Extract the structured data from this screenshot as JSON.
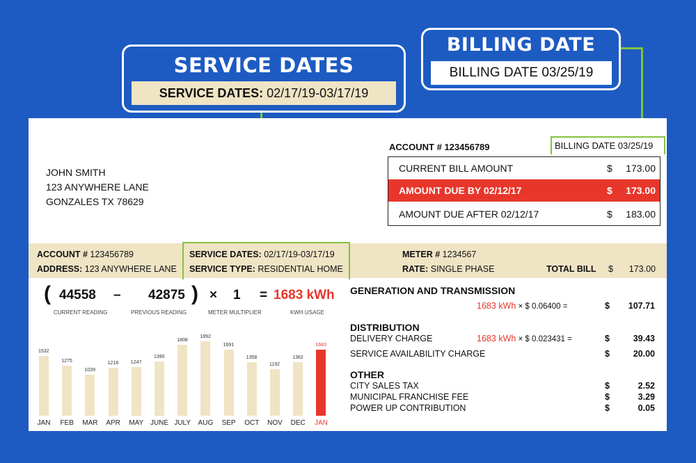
{
  "callouts": {
    "service": {
      "title": "SERVICE DATES",
      "label": "SERVICE DATES:",
      "value": "02/17/19-03/17/19"
    },
    "billing": {
      "title": "BILLING DATE",
      "text": "BILLING DATE 03/25/19"
    }
  },
  "customer": {
    "name": "JOHN SMITH",
    "street": "123 ANYWHERE LANE",
    "city": "GONZALES TX 78629"
  },
  "account_header": "ACCOUNT # 123456789",
  "billing_date_small": "BILLING DATE 03/25/19",
  "amounts": [
    {
      "label": "CURRENT BILL AMOUNT",
      "currency": "$",
      "value": "173.00"
    },
    {
      "label": "AMOUNT DUE BY 02/12/17",
      "currency": "$",
      "value": "173.00"
    },
    {
      "label": "AMOUNT DUE AFTER 02/12/17",
      "currency": "$",
      "value": "183.00"
    }
  ],
  "info": {
    "account_label": "ACCOUNT #",
    "account_value": "123456789",
    "address_label": "ADDRESS:",
    "address_value": "123 ANYWHERE LANE",
    "service_dates_label": "SERVICE DATES:",
    "service_dates_value": "02/17/19-03/17/19",
    "service_type_label": "SERVICE TYPE:",
    "service_type_value": "RESIDENTIAL HOME",
    "meter_label": "METER #",
    "meter_value": "1234567",
    "rate_label": "RATE:",
    "rate_value": "SINGLE PHASE",
    "total_label": "TOTAL BILL",
    "total_currency": "$",
    "total_value": "173.00"
  },
  "formula": {
    "open": "(",
    "current": "44558",
    "minus": "–",
    "previous": "42875",
    "close": ")",
    "times": "×",
    "multiplier": "1",
    "equals": "=",
    "usage": "1683 kWh",
    "current_label": "CURRENT READING",
    "previous_label": "PREVIOUS READING",
    "multiplier_label": "METER MULTIPLIER",
    "usage_label": "KWH USAGE"
  },
  "chart_data": {
    "type": "bar",
    "categories": [
      "JAN",
      "FEB",
      "MAR",
      "APR",
      "MAY",
      "JUNE",
      "JULY",
      "AUG",
      "SEP",
      "OCT",
      "NOV",
      "DEC",
      "JAN"
    ],
    "values": [
      1532,
      1275,
      1039,
      1218,
      1247,
      1390,
      1808,
      1892,
      1691,
      1358,
      1192,
      1362,
      1683
    ],
    "highlight_index": 12,
    "highlight_color": "#e8362b",
    "bar_color": "#efe4c4"
  },
  "charges": {
    "generation": {
      "title": "GENERATION AND TRANSMISSION",
      "kwh": "1683 kWh",
      "rate": "× $ 0.06400 =",
      "currency": "$",
      "amount": "107.71"
    },
    "distribution": {
      "title": "DISTRIBUTION",
      "delivery_label": "DELIVERY CHARGE",
      "delivery_kwh": "1683 kWh",
      "delivery_rate": "× $ 0.023431 =",
      "delivery_currency": "$",
      "delivery_amount": "39.43",
      "availability_label": "SERVICE AVAILABILITY CHARGE",
      "availability_currency": "$",
      "availability_amount": "20.00"
    },
    "other": {
      "title": "OTHER",
      "items": [
        {
          "label": "CITY SALES TAX",
          "currency": "$",
          "amount": "2.52"
        },
        {
          "label": "MUNICIPAL FRANCHISE FEE",
          "currency": "$",
          "amount": "3.29"
        },
        {
          "label": "POWER UP CONTRIBUTION",
          "currency": "$",
          "amount": "0.05"
        }
      ]
    }
  },
  "colors": {
    "background": "#1d5bc2",
    "accent_green": "#82c341",
    "due_red": "#e8362b",
    "band": "#efe4c4"
  }
}
